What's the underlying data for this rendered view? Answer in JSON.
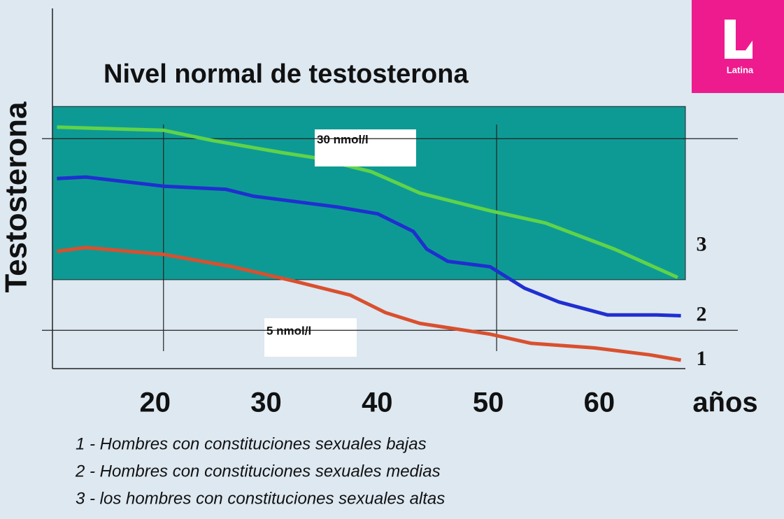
{
  "chart_data": {
    "type": "line",
    "title": "Nivel normal de testosterona",
    "y_label": "Testosterona",
    "x_label": "años",
    "logo": "Latina",
    "xlim": [
      10,
      67
    ],
    "ylim": [
      0,
      47
    ],
    "xticks": [
      20,
      30,
      40,
      50,
      60
    ],
    "vlines": [
      20,
      50
    ],
    "band": [
      11.6,
      34.2
    ],
    "band_color": "#0e9a94",
    "annotations": [
      {
        "value": 30,
        "label": "30 nmol/l"
      },
      {
        "value": 5,
        "label": "5 nmol/l"
      }
    ],
    "series": [
      {
        "name": "1",
        "description": "1 - Hombres con constituciones sexuales bajas",
        "color": "#d9502e",
        "x": [
          10.4,
          13.0,
          20,
          26.2,
          31.8,
          36.8,
          40,
          43.1,
          49.4,
          53.1,
          58.8,
          63.8,
          66.6
        ],
        "values": [
          15.3,
          15.8,
          14.9,
          13.3,
          11.4,
          9.6,
          7.3,
          5.9,
          4.5,
          3.3,
          2.7,
          1.8,
          1.1
        ]
      },
      {
        "name": "2",
        "description": "2 - Hombres con constituciones sexuales medias",
        "color": "#1f2fd0",
        "x": [
          10.4,
          13.0,
          20,
          25.6,
          28.1,
          35.6,
          39.3,
          42.5,
          43.7,
          45.6,
          49.4,
          52.5,
          55.6,
          60,
          64.4,
          66.6
        ],
        "values": [
          24.8,
          25,
          23.8,
          23.4,
          22.5,
          21.1,
          20.2,
          17.9,
          15.6,
          14,
          13.3,
          10.5,
          8.7,
          7,
          7,
          6.9
        ]
      },
      {
        "name": "3",
        "description": "3 - los hombres con constituciones sexuales altas",
        "color": "#5fd34a",
        "x": [
          10.4,
          20,
          24.3,
          30.6,
          33.7,
          38.7,
          43.1,
          49.4,
          54.4,
          60.6,
          66.3
        ],
        "values": [
          31.5,
          31.1,
          29.8,
          28.2,
          27.5,
          25.7,
          22.9,
          20.6,
          19,
          15.6,
          11.9
        ]
      }
    ]
  }
}
